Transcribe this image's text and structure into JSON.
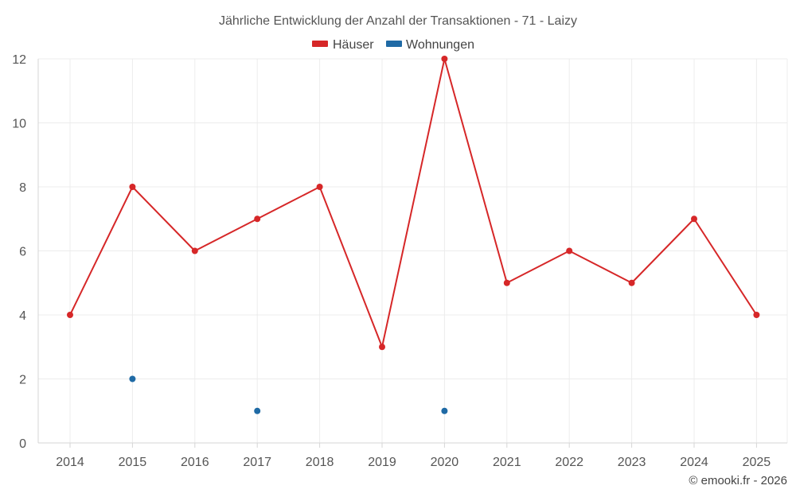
{
  "chart_data": {
    "type": "line",
    "title": "Jährliche Entwicklung der Anzahl der Transaktionen - 71 - Laizy",
    "categories": [
      "2014",
      "2015",
      "2016",
      "2017",
      "2018",
      "2019",
      "2020",
      "2021",
      "2022",
      "2023",
      "2024",
      "2025"
    ],
    "series": [
      {
        "name": "Häuser",
        "color": "#d62728",
        "values": [
          4,
          8,
          6,
          7,
          8,
          3,
          12,
          5,
          6,
          5,
          7,
          4
        ]
      },
      {
        "name": "Wohnungen",
        "color": "#1f6aa5",
        "values": [
          null,
          2,
          null,
          1,
          null,
          null,
          1,
          null,
          null,
          null,
          null,
          null
        ]
      }
    ],
    "xlabel": "",
    "ylabel": "",
    "ylim": [
      0,
      12
    ],
    "yticks": [
      0,
      2,
      4,
      6,
      8,
      10,
      12
    ],
    "grid": true,
    "legend": "top-center"
  },
  "credit": "© emooki.fr - 2026"
}
